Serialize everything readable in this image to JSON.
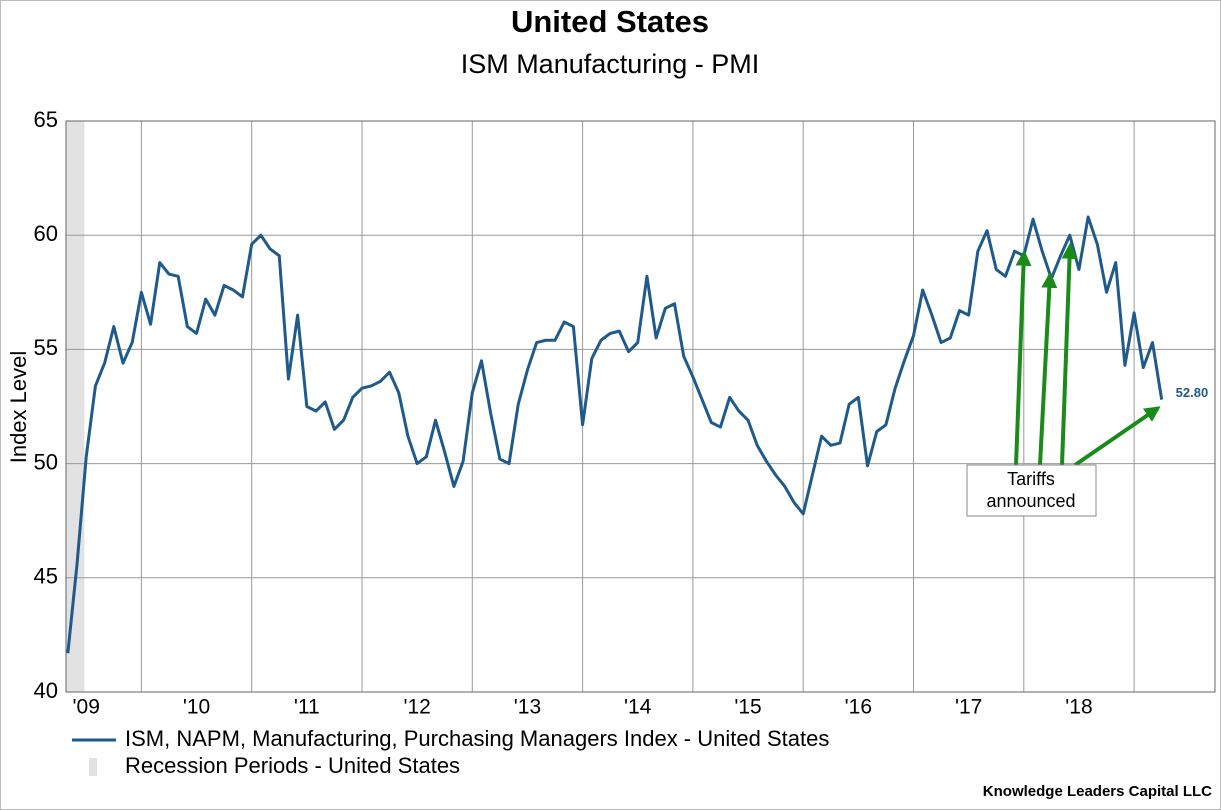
{
  "chart_data": {
    "type": "line",
    "title": "United States",
    "subtitle": "ISM Manufacturing - PMI",
    "y_label": "Index Level",
    "xlim": [
      -0.2,
      124.8
    ],
    "xticks": [
      {
        "value": -4,
        "label": "'09"
      },
      {
        "value": 8,
        "label": "'10"
      },
      {
        "value": 20,
        "label": "'11"
      },
      {
        "value": 32,
        "label": "'12"
      },
      {
        "value": 44,
        "label": "'13"
      },
      {
        "value": 56,
        "label": "'14"
      },
      {
        "value": 68,
        "label": "'15"
      },
      {
        "value": 80,
        "label": "'16"
      },
      {
        "value": 92,
        "label": "'17"
      },
      {
        "value": 104,
        "label": "'18"
      },
      {
        "value": 116,
        "label": null
      }
    ],
    "ylim": [
      40,
      65
    ],
    "yticks": [
      40,
      45,
      50,
      55,
      60,
      65
    ],
    "grid": true,
    "series": [
      {
        "name": "ISM, NAPM, Manufacturing, Purchasing Managers Index - United States",
        "color": "#1f5a8c",
        "values": [
          41.7,
          45.6,
          50.3,
          53.4,
          54.4,
          56.0,
          54.4,
          55.3,
          57.5,
          56.1,
          58.8,
          58.3,
          58.2,
          56.0,
          55.7,
          57.2,
          56.5,
          57.8,
          57.6,
          57.3,
          59.6,
          60.0,
          59.4,
          59.1,
          53.7,
          56.5,
          52.5,
          52.3,
          52.7,
          51.5,
          51.9,
          52.9,
          53.3,
          53.4,
          53.6,
          54.0,
          53.1,
          51.2,
          50.0,
          50.3,
          51.9,
          50.5,
          49.0,
          50.1,
          53.1,
          54.5,
          52.2,
          50.2,
          50.0,
          52.6,
          54.1,
          55.3,
          55.4,
          55.4,
          56.2,
          56.0,
          51.7,
          54.6,
          55.4,
          55.7,
          55.8,
          54.9,
          55.3,
          58.2,
          55.5,
          56.8,
          57.0,
          54.7,
          53.8,
          52.8,
          51.8,
          51.6,
          52.9,
          52.3,
          51.9,
          50.8,
          50.1,
          49.5,
          49.0,
          48.3,
          47.8,
          49.5,
          51.2,
          50.8,
          50.9,
          52.6,
          52.9,
          49.9,
          51.4,
          51.7,
          53.3,
          54.5,
          55.6,
          57.6,
          56.5,
          55.3,
          55.5,
          56.7,
          56.5,
          59.3,
          60.2,
          58.5,
          58.2,
          59.3,
          59.1,
          60.7,
          59.3,
          58.1,
          59.1,
          60.0,
          58.5,
          60.8,
          59.6,
          57.5,
          58.8,
          54.3,
          56.6,
          54.2,
          55.3,
          52.8
        ],
        "last_value_label": "52.80"
      }
    ],
    "recession": {
      "name": "Recession Periods - United States",
      "color": "#e2e2e2",
      "x": [
        -0.2,
        1.8
      ]
    },
    "annotation": [
      "Tariffs",
      "announced"
    ],
    "source": "Knowledge Leaders Capital LLC"
  }
}
